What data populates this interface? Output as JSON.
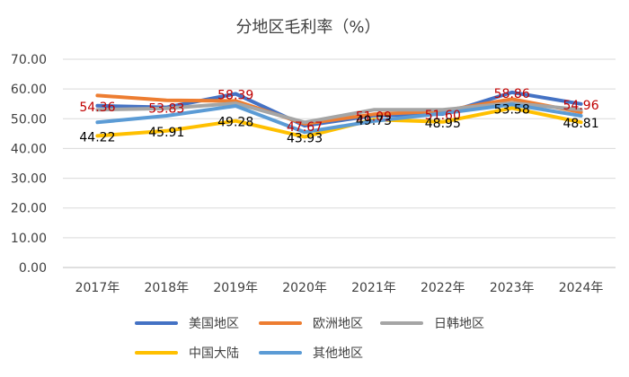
{
  "chart_data": {
    "type": "line",
    "title": "分地区毛利率（%）",
    "categories": [
      "2017年",
      "2018年",
      "2019年",
      "2020年",
      "2021年",
      "2022年",
      "2023年",
      "2024年"
    ],
    "ylim": [
      0,
      70
    ],
    "yticks": [
      "0.00",
      "10.00",
      "20.00",
      "30.00",
      "40.00",
      "50.00",
      "60.00",
      "70.00"
    ],
    "grid": true,
    "legend_position": "bottom",
    "series": [
      {
        "name": "美国地区",
        "color": "#4472C4",
        "values": [
          54.36,
          53.83,
          58.39,
          47.67,
          51.09,
          51.6,
          58.86,
          54.96
        ]
      },
      {
        "name": "欧洲地区",
        "color": "#ED7D31",
        "values": [
          57.8,
          56.2,
          56.0,
          48.3,
          51.5,
          52.6,
          56.6,
          52.2
        ]
      },
      {
        "name": "日韩地区",
        "color": "#A5A5A5",
        "values": [
          53.0,
          53.5,
          55.2,
          48.8,
          53.0,
          53.0,
          55.3,
          53.0
        ]
      },
      {
        "name": "中国大陆",
        "color": "#FFC000",
        "values": [
          44.22,
          45.91,
          49.28,
          43.93,
          49.73,
          48.95,
          53.58,
          48.81
        ]
      },
      {
        "name": "其他地区",
        "color": "#5B9BD5",
        "values": [
          48.8,
          51.0,
          54.3,
          45.5,
          49.2,
          51.8,
          54.8,
          51.0
        ]
      }
    ],
    "data_labels": [
      {
        "series": 0,
        "color": "#C00000",
        "labels": [
          "54.36",
          "53.83",
          "58.39",
          "47.67",
          "51.09",
          "51.60",
          "58.86",
          "54.96"
        ]
      },
      {
        "series": 3,
        "color": "#000000",
        "labels": [
          "44.22",
          "45.91",
          "49.28",
          "43.93",
          "49.73",
          "48.95",
          "53.58",
          "48.81"
        ]
      }
    ]
  }
}
